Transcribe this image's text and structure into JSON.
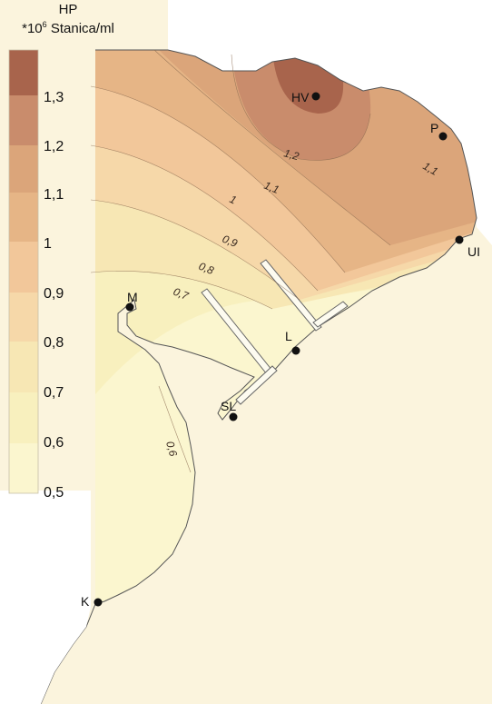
{
  "legend": {
    "title_line1": "HP",
    "title_line2_prefix": "*10",
    "title_line2_sup": "6",
    "title_line2_suffix": " Stanica/ml",
    "labels": [
      "1,3",
      "1,2",
      "1,1",
      "1",
      "0,9",
      "0,8",
      "0,7",
      "0,6",
      "0,5"
    ],
    "colors": [
      "#a8644c",
      "#c98c6c",
      "#dba57a",
      "#e6b586",
      "#f2c79a",
      "#f6d8a9",
      "#f7e7b4",
      "#f8f0be",
      "#fbf6cf"
    ]
  },
  "map": {
    "sea_color": "#fbf4dd",
    "land_color": "#ffffff",
    "isoline_labels": [
      "1,2",
      "1,1",
      "1,1",
      "1",
      "0,9",
      "0,8",
      "0,7",
      "0,6"
    ],
    "stations": [
      {
        "id": "HV",
        "label": "HV"
      },
      {
        "id": "P",
        "label": "P"
      },
      {
        "id": "UI",
        "label": "UI"
      },
      {
        "id": "L",
        "label": "L"
      },
      {
        "id": "M",
        "label": "M"
      },
      {
        "id": "SL",
        "label": "SL"
      },
      {
        "id": "K",
        "label": "K"
      }
    ]
  }
}
